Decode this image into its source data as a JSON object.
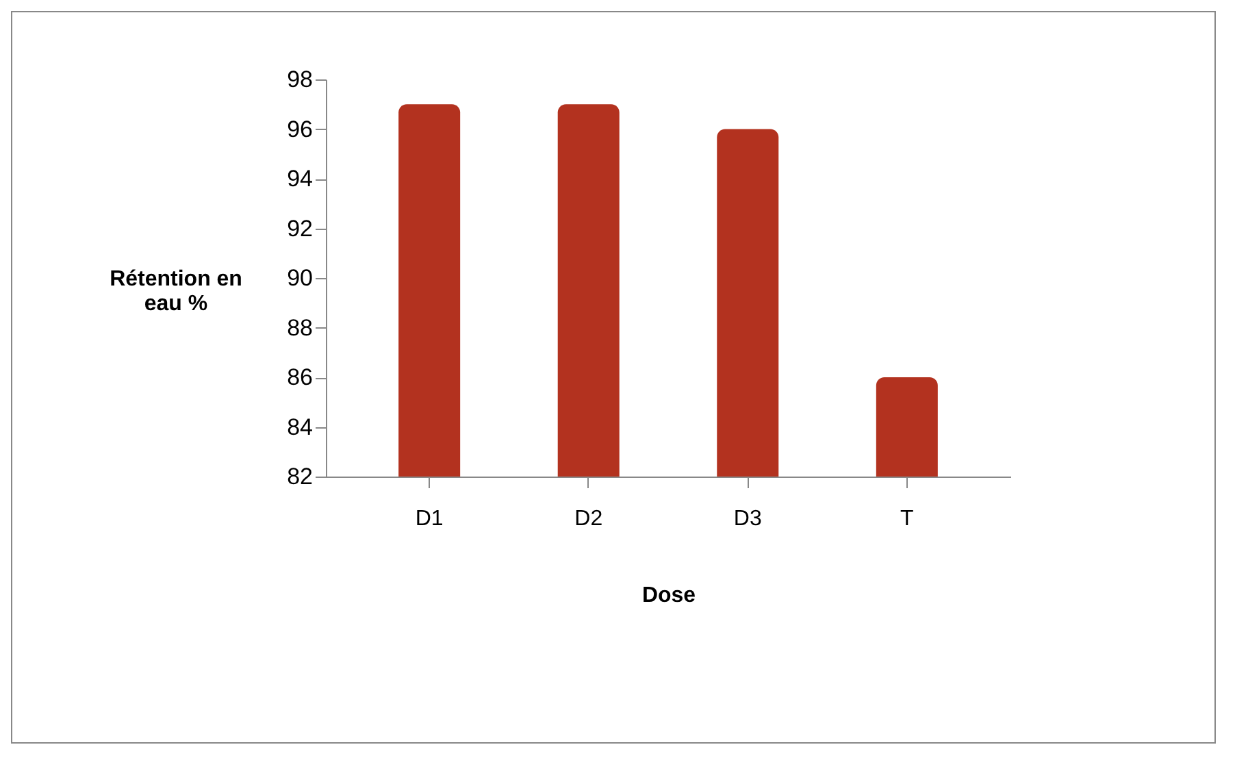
{
  "chart_data": {
    "type": "bar",
    "xlabel": "Dose",
    "ylabel": "Rétention en eau %",
    "categories": [
      "D1",
      "D2",
      "D3",
      "T"
    ],
    "values": [
      97,
      97,
      96,
      86
    ],
    "color": "#b3321f",
    "ylim": [
      82,
      98
    ],
    "yticks": [
      82,
      84,
      86,
      88,
      90,
      92,
      94,
      96,
      98
    ],
    "grid": false
  }
}
